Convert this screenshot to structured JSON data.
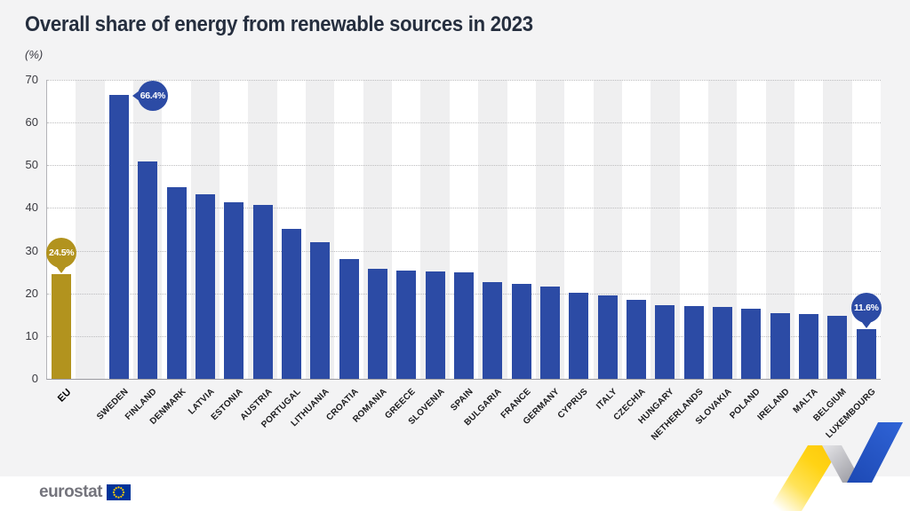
{
  "title": "Overall share of energy from renewable sources in 2023",
  "subtitle": "(%)",
  "chart_data": {
    "type": "bar",
    "unit": "%",
    "ylim": [
      0,
      70
    ],
    "yticks": [
      0,
      10,
      20,
      30,
      40,
      50,
      60,
      70
    ],
    "grid": "horizontal-dotted",
    "legend": "none",
    "series": [
      {
        "name": "EU",
        "value": 24.5,
        "color_key": "eu_gold"
      },
      {
        "name": "SWEDEN",
        "value": 66.4,
        "color_key": "bar_blue"
      },
      {
        "name": "FINLAND",
        "value": 50.8,
        "color_key": "bar_blue"
      },
      {
        "name": "DENMARK",
        "value": 44.9,
        "color_key": "bar_blue"
      },
      {
        "name": "LATVIA",
        "value": 43.2,
        "color_key": "bar_blue"
      },
      {
        "name": "ESTONIA",
        "value": 41.3,
        "color_key": "bar_blue"
      },
      {
        "name": "AUSTRIA",
        "value": 40.8,
        "color_key": "bar_blue"
      },
      {
        "name": "PORTUGAL",
        "value": 35.2,
        "color_key": "bar_blue"
      },
      {
        "name": "LITHUANIA",
        "value": 32.0,
        "color_key": "bar_blue"
      },
      {
        "name": "CROATIA",
        "value": 28.1,
        "color_key": "bar_blue"
      },
      {
        "name": "ROMANIA",
        "value": 25.8,
        "color_key": "bar_blue"
      },
      {
        "name": "GREECE",
        "value": 25.3,
        "color_key": "bar_blue"
      },
      {
        "name": "SLOVENIA",
        "value": 25.1,
        "color_key": "bar_blue"
      },
      {
        "name": "SPAIN",
        "value": 24.9,
        "color_key": "bar_blue"
      },
      {
        "name": "BULGARIA",
        "value": 22.6,
        "color_key": "bar_blue"
      },
      {
        "name": "FRANCE",
        "value": 22.3,
        "color_key": "bar_blue"
      },
      {
        "name": "GERMANY",
        "value": 21.6,
        "color_key": "bar_blue"
      },
      {
        "name": "CYPRUS",
        "value": 20.2,
        "color_key": "bar_blue"
      },
      {
        "name": "ITALY",
        "value": 19.6,
        "color_key": "bar_blue"
      },
      {
        "name": "CZECHIA",
        "value": 18.6,
        "color_key": "bar_blue"
      },
      {
        "name": "HUNGARY",
        "value": 17.3,
        "color_key": "bar_blue"
      },
      {
        "name": "NETHERLANDS",
        "value": 17.1,
        "color_key": "bar_blue"
      },
      {
        "name": "SLOVAKIA",
        "value": 16.9,
        "color_key": "bar_blue"
      },
      {
        "name": "POLAND",
        "value": 16.5,
        "color_key": "bar_blue"
      },
      {
        "name": "IRELAND",
        "value": 15.3,
        "color_key": "bar_blue"
      },
      {
        "name": "MALTA",
        "value": 15.1,
        "color_key": "bar_blue"
      },
      {
        "name": "BELGIUM",
        "value": 14.7,
        "color_key": "bar_blue"
      },
      {
        "name": "LUXEMBOURG",
        "value": 11.6,
        "color_key": "bar_blue"
      }
    ],
    "callouts": [
      {
        "series_name": "EU",
        "text": "24.5%",
        "color_key": "eu_gold",
        "tail": "down"
      },
      {
        "series_name": "SWEDEN",
        "text": "66.4%",
        "color_key": "bar_blue",
        "tail": "left"
      },
      {
        "series_name": "LUXEMBOURG",
        "text": "11.6%",
        "color_key": "bar_blue",
        "tail": "down"
      }
    ]
  },
  "colors": {
    "bar_blue": "#2c4ba5",
    "eu_gold": "#b2931e",
    "title": "#252e3e",
    "background": "#f3f3f4",
    "stripe_light": "#ffffff",
    "stripe_dark": "#efeff0",
    "footer_bg": "#ffffff",
    "flag_blue": "#003399",
    "flag_stars": "#ffcc00",
    "ribbon_yellow": "#ffd314",
    "ribbon_grey": "#a4a4ac",
    "ribbon_blue": "#2a5ac8",
    "logo_text_grey": "#74747c"
  },
  "footer": {
    "logo_text": "eurostat"
  }
}
